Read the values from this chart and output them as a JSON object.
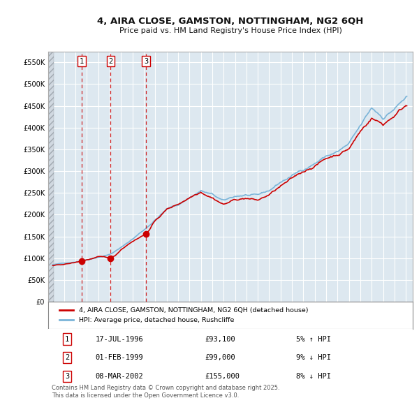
{
  "title_line1": "4, AIRA CLOSE, GAMSTON, NOTTINGHAM, NG2 6QH",
  "title_line2": "Price paid vs. HM Land Registry's House Price Index (HPI)",
  "background_color": "#ffffff",
  "plot_bg_color": "#dde8f0",
  "grid_color": "#ffffff",
  "hpi_color": "#7ab4d8",
  "price_color": "#cc0000",
  "dashed_color": "#cc0000",
  "legend_label_price": "4, AIRA CLOSE, GAMSTON, NOTTINGHAM, NG2 6QH (detached house)",
  "legend_label_hpi": "HPI: Average price, detached house, Rushcliffe",
  "sale_dates_float": [
    1996.538,
    1999.083,
    2002.186
  ],
  "sale_prices": [
    93100,
    99000,
    155000
  ],
  "sale_labels": [
    "1",
    "2",
    "3"
  ],
  "table_entries": [
    {
      "label": "1",
      "date": "17-JUL-1996",
      "price": "£93,100",
      "change": "5% ↑ HPI"
    },
    {
      "label": "2",
      "date": "01-FEB-1999",
      "price": "£99,000",
      "change": "9% ↓ HPI"
    },
    {
      "label": "3",
      "date": "08-MAR-2002",
      "price": "£155,000",
      "change": "8% ↓ HPI"
    }
  ],
  "footnote": "Contains HM Land Registry data © Crown copyright and database right 2025.\nThis data is licensed under the Open Government Licence v3.0.",
  "ylim": [
    0,
    575000
  ],
  "yticks": [
    0,
    50000,
    100000,
    150000,
    200000,
    250000,
    300000,
    350000,
    400000,
    450000,
    500000,
    550000
  ],
  "ytick_labels": [
    "£0",
    "£50K",
    "£100K",
    "£150K",
    "£200K",
    "£250K",
    "£300K",
    "£350K",
    "£400K",
    "£450K",
    "£500K",
    "£550K"
  ],
  "xlim_left": 1993.6,
  "xlim_right": 2025.6,
  "hatch_end": 1994.08
}
